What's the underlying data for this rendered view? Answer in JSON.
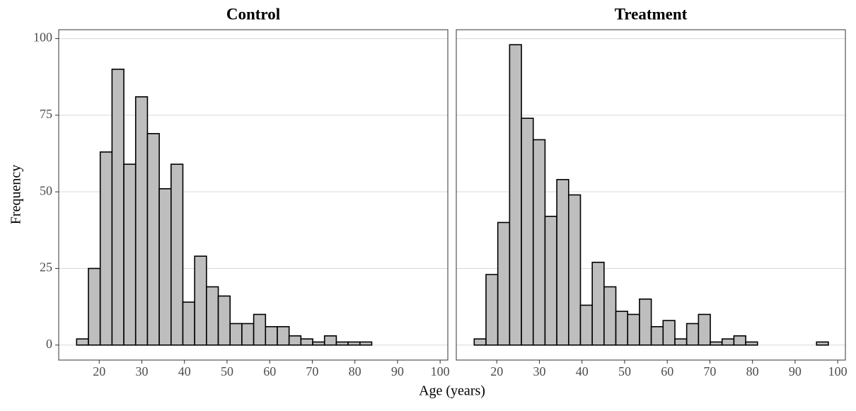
{
  "xlabel": "Age (years)",
  "ylabel": "Frequency",
  "chart_data": [
    {
      "type": "histogram",
      "title": "Control",
      "bins": [
        14.7,
        17.47,
        20.24,
        23.01,
        25.78,
        28.55,
        31.32,
        34.09,
        36.86,
        39.63,
        42.4,
        45.17,
        47.94,
        50.71,
        53.48,
        56.25,
        59.02,
        61.79,
        64.56,
        67.33,
        70.1,
        72.87,
        75.64,
        78.41,
        81.18,
        83.95,
        86.72,
        89.49,
        92.26,
        95.03,
        97.8
      ],
      "values": [
        2,
        25,
        63,
        90,
        59,
        81,
        69,
        51,
        59,
        14,
        29,
        19,
        16,
        7,
        7,
        10,
        6,
        6,
        3,
        2,
        1,
        3,
        1,
        1,
        1,
        0,
        0,
        0,
        0,
        0
      ],
      "color": "#bebebe",
      "xlim": [
        10.5,
        101.8
      ],
      "ylim": [
        -4.9,
        102.9
      ],
      "xticks": [
        20,
        30,
        40,
        50,
        60,
        70,
        80,
        90,
        100
      ],
      "yticks": [
        0,
        25,
        50,
        75,
        100
      ],
      "grid": true
    },
    {
      "type": "histogram",
      "title": "Treatment",
      "bins": [
        14.7,
        17.47,
        20.24,
        23.01,
        25.78,
        28.55,
        31.32,
        34.09,
        36.86,
        39.63,
        42.4,
        45.17,
        47.94,
        50.71,
        53.48,
        56.25,
        59.02,
        61.79,
        64.56,
        67.33,
        70.1,
        72.87,
        75.64,
        78.41,
        81.18,
        83.95,
        86.72,
        89.49,
        92.26,
        95.03,
        97.8
      ],
      "values": [
        2,
        23,
        40,
        98,
        74,
        67,
        42,
        54,
        49,
        13,
        27,
        19,
        11,
        10,
        15,
        6,
        8,
        2,
        7,
        10,
        1,
        2,
        3,
        1,
        0,
        0,
        0,
        0,
        0,
        1
      ],
      "color": "#bebebe",
      "xlim": [
        10.5,
        101.8
      ],
      "ylim": [
        -4.9,
        102.9
      ],
      "xticks": [
        20,
        30,
        40,
        50,
        60,
        70,
        80,
        90,
        100
      ],
      "yticks": [
        0,
        25,
        50,
        75,
        100
      ],
      "grid": true
    }
  ]
}
